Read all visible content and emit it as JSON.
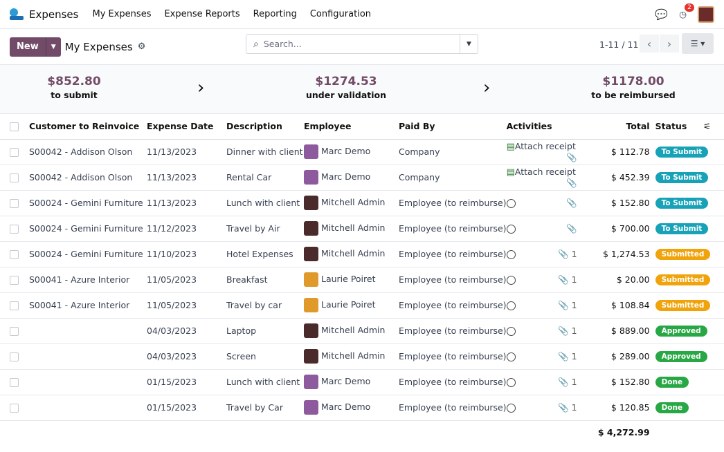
{
  "nav": {
    "app": "Expenses",
    "menus": [
      "My Expenses",
      "Expense Reports",
      "Reporting",
      "Configuration"
    ],
    "notif_count": "2"
  },
  "cp": {
    "new": "New",
    "title": "My Expenses",
    "search_placeholder": "Search...",
    "pager": "1-11 / 11"
  },
  "summary": [
    {
      "amount": "$852.80",
      "label": "to submit"
    },
    {
      "amount": "$1274.53",
      "label": "under validation"
    },
    {
      "amount": "$1178.00",
      "label": "to be reimbursed"
    }
  ],
  "columns": [
    "Customer to Reinvoice",
    "Expense Date",
    "Description",
    "Employee",
    "Paid By",
    "Activities",
    "Total",
    "Status"
  ],
  "status_colors": {
    "To Submit": "#17a2b8",
    "Submitted": "#f0a30a",
    "Approved": "#28a745",
    "Done": "#28a745"
  },
  "avatar_colors": {
    "Marc Demo": "#8e5a9e",
    "Mitchell Admin": "#4a2a2a",
    "Laurie Poiret": "#e09a2c"
  },
  "rows": [
    {
      "customer": "S00042 - Addison Olson",
      "date": "11/13/2023",
      "desc": "Dinner with client",
      "employee": "Marc Demo",
      "paid": "Company",
      "activity": "Attach receipt",
      "attach": "",
      "total": "$ 112.78",
      "status": "To Submit"
    },
    {
      "customer": "S00042 - Addison Olson",
      "date": "11/13/2023",
      "desc": "Rental Car",
      "employee": "Marc Demo",
      "paid": "Company",
      "activity": "Attach receipt",
      "attach": "",
      "total": "$ 452.39",
      "status": "To Submit"
    },
    {
      "customer": "S00024 - Gemini Furniture",
      "date": "11/13/2023",
      "desc": "Lunch with client",
      "employee": "Mitchell Admin",
      "paid": "Employee (to reimburse)",
      "activity": "",
      "attach": "",
      "total": "$ 152.80",
      "status": "To Submit"
    },
    {
      "customer": "S00024 - Gemini Furniture",
      "date": "11/12/2023",
      "desc": "Travel by Air",
      "employee": "Mitchell Admin",
      "paid": "Employee (to reimburse)",
      "activity": "",
      "attach": "",
      "total": "$ 700.00",
      "status": "To Submit"
    },
    {
      "customer": "S00024 - Gemini Furniture",
      "date": "11/10/2023",
      "desc": "Hotel Expenses",
      "employee": "Mitchell Admin",
      "paid": "Employee (to reimburse)",
      "activity": "",
      "attach": "1",
      "total": "$ 1,274.53",
      "status": "Submitted"
    },
    {
      "customer": "S00041 - Azure Interior",
      "date": "11/05/2023",
      "desc": "Breakfast",
      "employee": "Laurie Poiret",
      "paid": "Employee (to reimburse)",
      "activity": "",
      "attach": "1",
      "total": "$ 20.00",
      "status": "Submitted"
    },
    {
      "customer": "S00041 - Azure Interior",
      "date": "11/05/2023",
      "desc": "Travel by car",
      "employee": "Laurie Poiret",
      "paid": "Employee (to reimburse)",
      "activity": "",
      "attach": "1",
      "total": "$ 108.84",
      "status": "Submitted"
    },
    {
      "customer": "",
      "date": "04/03/2023",
      "desc": "Laptop",
      "employee": "Mitchell Admin",
      "paid": "Employee (to reimburse)",
      "activity": "",
      "attach": "1",
      "total": "$ 889.00",
      "status": "Approved"
    },
    {
      "customer": "",
      "date": "04/03/2023",
      "desc": "Screen",
      "employee": "Mitchell Admin",
      "paid": "Employee (to reimburse)",
      "activity": "",
      "attach": "1",
      "total": "$ 289.00",
      "status": "Approved"
    },
    {
      "customer": "",
      "date": "01/15/2023",
      "desc": "Lunch with client",
      "employee": "Marc Demo",
      "paid": "Employee (to reimburse)",
      "activity": "",
      "attach": "1",
      "total": "$ 152.80",
      "status": "Done"
    },
    {
      "customer": "",
      "date": "01/15/2023",
      "desc": "Travel by Car",
      "employee": "Marc Demo",
      "paid": "Employee (to reimburse)",
      "activity": "",
      "attach": "1",
      "total": "$ 120.85",
      "status": "Done"
    }
  ],
  "grand_total": "$ 4,272.99"
}
